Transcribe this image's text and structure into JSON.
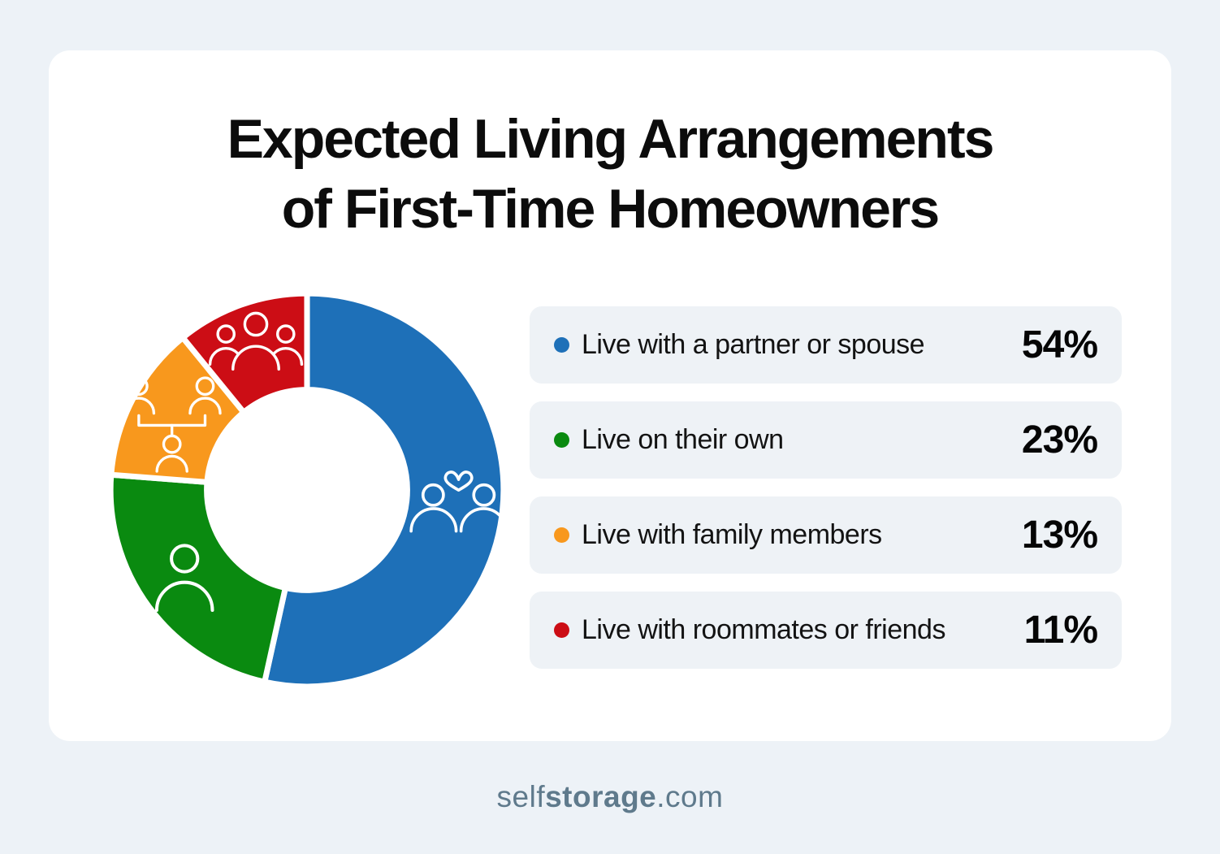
{
  "title": {
    "line1": "Expected Living Arrangements",
    "line2": "of First-Time Homeowners"
  },
  "chart_data": {
    "type": "pie",
    "subtype": "donut",
    "title": "Expected Living Arrangements of First-Time Homeowners",
    "categories": [
      "Live with a partner or spouse",
      "Live on their own",
      "Live with family members",
      "Live with roommates or friends"
    ],
    "values": [
      54,
      23,
      13,
      11
    ],
    "unit": "%",
    "colors": [
      "#1e70b8",
      "#0a8a10",
      "#f8981d",
      "#cc0d15"
    ],
    "start_angle_deg": 0,
    "direction": "clockwise",
    "inner_radius_ratio": 0.51,
    "segment_separator_color": "#ffffff",
    "segment_icons": [
      "couple-with-heart",
      "single-person",
      "family-tree",
      "group-of-three-people"
    ],
    "legend_position": "right"
  },
  "legend": {
    "items": [
      {
        "label": "Live with a partner or spouse",
        "value_label": "54%",
        "color": "#1e70b8"
      },
      {
        "label": "Live on their own",
        "value_label": "23%",
        "color": "#0a8a10"
      },
      {
        "label": "Live with family members",
        "value_label": "13%",
        "color": "#f8981d"
      },
      {
        "label": "Live with roommates or friends",
        "value_label": "11%",
        "color": "#cc0d15"
      }
    ]
  },
  "footer": {
    "brand_prefix": "self",
    "brand_bold": "storage",
    "brand_suffix": ".com"
  },
  "colors": {
    "page_background": "#edf2f7",
    "card_background": "#ffffff",
    "legend_row_background": "#eef2f6",
    "title_text": "#0c0c0c",
    "label_text": "#131313",
    "value_text": "#050505",
    "footer_text": "#5f7a8c",
    "icon_stroke": "#ffffff"
  }
}
